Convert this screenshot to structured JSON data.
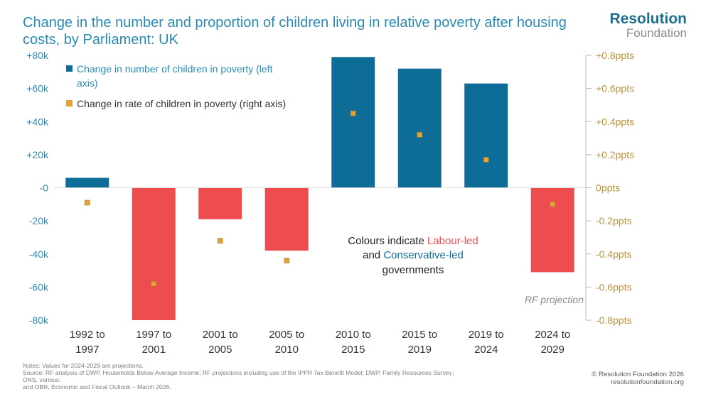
{
  "title": "Change in the number and proportion of children living in relative poverty after housing costs, by Parliament: UK",
  "brand": {
    "line1": "Resolution",
    "line2": "Foundation"
  },
  "chart_data": {
    "type": "bar",
    "categories": [
      [
        "1992 to",
        "1997"
      ],
      [
        "1997 to",
        "2001"
      ],
      [
        "2001 to",
        "2005"
      ],
      [
        "2005 to",
        "2010"
      ],
      [
        "2010 to",
        "2015"
      ],
      [
        "2015 to",
        "2019"
      ],
      [
        "2019 to",
        "2024"
      ],
      [
        "2024 to",
        "2029"
      ]
    ],
    "series": [
      {
        "name": "Change in number of children in poverty (left axis)",
        "axis": "left",
        "values": [
          6000,
          -80000,
          -19000,
          -38000,
          79000,
          72000,
          63000,
          -51000
        ],
        "government": [
          "Conservative",
          "Labour",
          "Labour",
          "Labour",
          "Conservative",
          "Conservative",
          "Conservative",
          "Labour"
        ]
      },
      {
        "name": "Change in rate of children in poverty (right axis)",
        "axis": "right",
        "values": [
          -0.09,
          -0.58,
          -0.32,
          -0.44,
          0.45,
          0.32,
          0.17,
          -0.1
        ]
      }
    ],
    "left_axis": {
      "ylim": [
        -80000,
        80000
      ],
      "ticks": [
        80000,
        60000,
        40000,
        20000,
        0,
        -20000,
        -40000,
        -60000,
        -80000
      ],
      "tick_labels": [
        "+80k",
        "+60k",
        "+40k",
        "+20k",
        "-0",
        "-20k",
        "-40k",
        "-60k",
        "-80k"
      ]
    },
    "right_axis": {
      "ylim": [
        -0.8,
        0.8
      ],
      "ticks": [
        0.8,
        0.6,
        0.4,
        0.2,
        0,
        -0.2,
        -0.4,
        -0.6,
        -0.8
      ],
      "tick_labels": [
        "+0.8ppts",
        "+0.6ppts",
        "+0.4ppts",
        "+0.2ppts",
        "0ppts",
        "-0.2ppts",
        "-0.4ppts",
        "-0.6ppts",
        "-0.8ppts"
      ]
    },
    "legend": [
      {
        "label_lines": [
          "Change in number of children in poverty (left",
          "axis)"
        ],
        "marker": "square-blue"
      },
      {
        "label_lines": [
          "Change in rate of children in poverty (right axis)"
        ],
        "marker": "square-orange"
      }
    ],
    "annotation": {
      "line1": "Colours indicate ",
      "labour": "Labour-led",
      "line2a": "and ",
      "conservative": "Conservative-led",
      "line3": "governments"
    },
    "projection_label": "RF projection",
    "colors": {
      "Conservative": "#0e6d97",
      "Labour": "#ee4d4f",
      "point": "#e5a23a",
      "left_axis": "#2a8ab0",
      "right_axis": "#b7923a",
      "annotation_text": "#222222"
    }
  },
  "notes": {
    "line1": "Notes: Values for 2024-2029 are projections.",
    "line2": "Source: RF analysis of DWP, Households Below Average Income; RF projections including use of the IPPR Tax Benefit Model; DWP, Family Resources Survey; ONS, various;",
    "line3": "and OBR, Economic and Fiscal Outlook – March 2026."
  },
  "copyright": {
    "line1": "© Resolution Foundation 2026",
    "line2": "resolutionfoundation.org"
  }
}
